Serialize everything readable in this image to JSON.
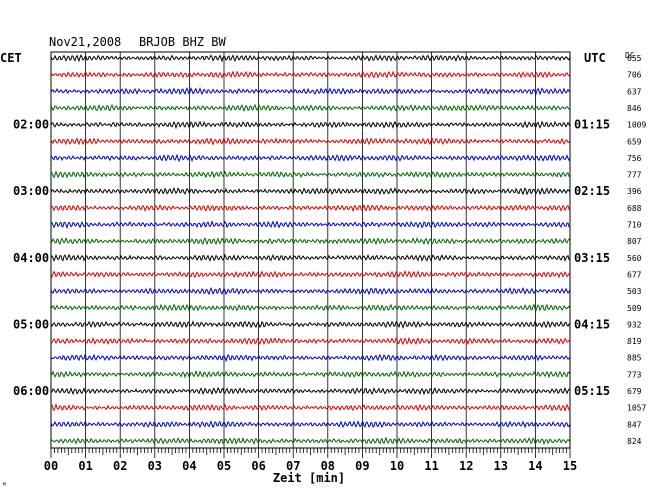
{
  "chart_data": {
    "type": "line",
    "header": {
      "date": "Nov21,2008",
      "station": "BRJOB BHZ BW"
    },
    "left_timezone": "CET",
    "right_timezone": "UTC",
    "dc_label": "DC",
    "xlabel": "Zeit [min]",
    "x_ticks": [
      "00",
      "01",
      "02",
      "03",
      "04",
      "05",
      "06",
      "07",
      "08",
      "09",
      "10",
      "11",
      "12",
      "13",
      "14",
      "15"
    ],
    "xlim": [
      0,
      15
    ],
    "left_hour_labels": [
      "02:00",
      "03:00",
      "04:00",
      "05:00",
      "06:00"
    ],
    "right_hour_labels": [
      "01:15",
      "02:15",
      "03:15",
      "04:15",
      "05:15"
    ],
    "trace_colors": [
      "#000000",
      "#dd0000",
      "#0000cc",
      "#006600"
    ],
    "dc_values": [
      655,
      706,
      637,
      846,
      1009,
      659,
      756,
      777,
      396,
      688,
      710,
      807,
      560,
      677,
      503,
      509,
      932,
      819,
      885,
      773,
      679,
      1057,
      847,
      824
    ],
    "corner_mark": "ᴹ"
  }
}
